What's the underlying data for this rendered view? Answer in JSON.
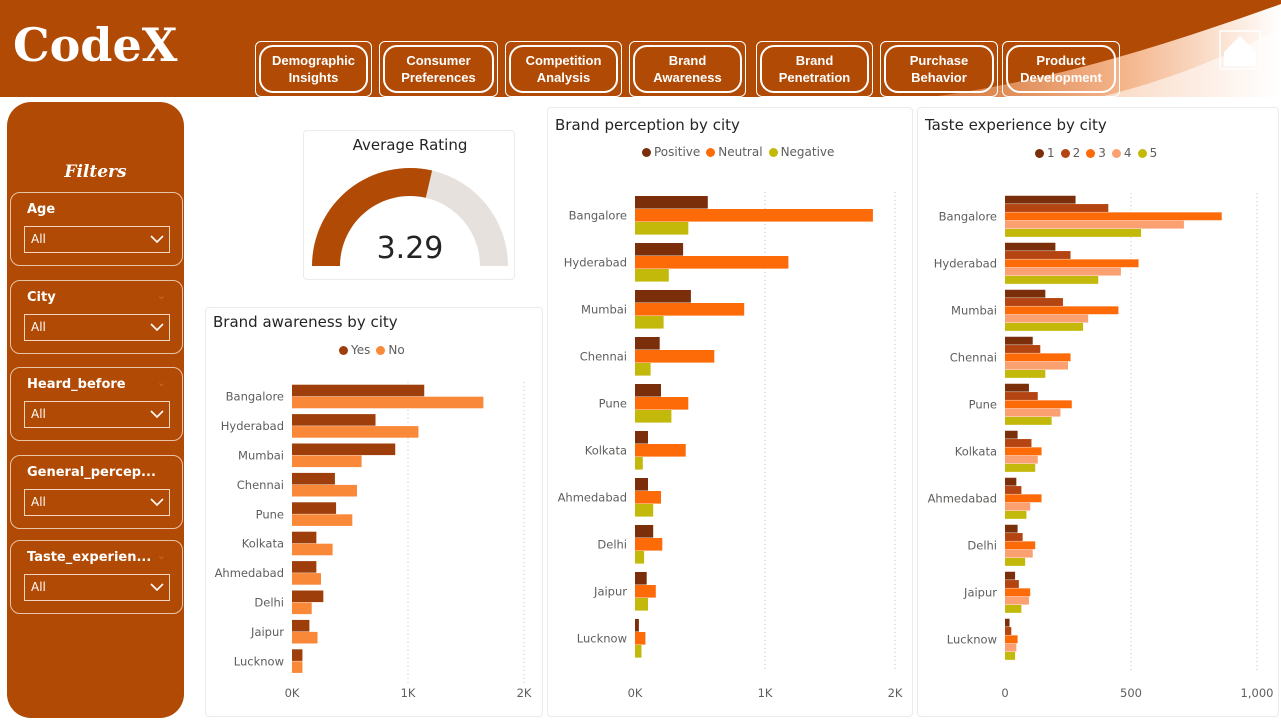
{
  "app": {
    "logo": "CodeX"
  },
  "nav": [
    {
      "line1": "Demographic",
      "line2": "Insights"
    },
    {
      "line1": "Consumer",
      "line2": "Preferences"
    },
    {
      "line1": "Competition",
      "line2": "Analysis"
    },
    {
      "line1": "Brand",
      "line2": "Awareness"
    },
    {
      "line1": "Brand",
      "line2": "Penetration"
    },
    {
      "line1": "Purchase",
      "line2": "Behavior"
    },
    {
      "line1": "Product",
      "line2": "Development"
    }
  ],
  "home_icon": "home-icon",
  "filters": {
    "title": "Filters",
    "items": [
      {
        "label": "Age",
        "value": "All"
      },
      {
        "label": "City",
        "value": "All"
      },
      {
        "label": "Heard_before",
        "value": "All"
      },
      {
        "label": "General_percep...",
        "value": "All"
      },
      {
        "label": "Taste_experien...",
        "value": "All"
      }
    ]
  },
  "gauge": {
    "title": "Average Rating",
    "value": "3.29",
    "numeric": 3.29,
    "min": 1,
    "max": 5
  },
  "colors": {
    "brand": "#b04a04",
    "yes": "#9e3f0b",
    "no": "#f98938",
    "positive": "#7a2f0a",
    "neutral": "#fd6a08",
    "negative": "#c2b90a",
    "t1": "#7a2f0a",
    "t2": "#b44512",
    "t3": "#fd6a08",
    "t4": "#fba071",
    "t5": "#c2b90a",
    "gauge_empty": "#e6e1dd"
  },
  "chart_data": [
    {
      "type": "bar",
      "title": "Brand awareness by city",
      "categories": [
        "Bangalore",
        "Hyderabad",
        "Mumbai",
        "Chennai",
        "Pune",
        "Kolkata",
        "Ahmedabad",
        "Delhi",
        "Jaipur",
        "Lucknow"
      ],
      "series": [
        {
          "name": "Yes",
          "values": [
            1140,
            720,
            890,
            370,
            380,
            210,
            210,
            270,
            150,
            90
          ]
        },
        {
          "name": "No",
          "values": [
            1650,
            1090,
            600,
            560,
            520,
            350,
            250,
            170,
            220,
            90
          ]
        }
      ],
      "xlim": [
        0,
        2000
      ],
      "ticks": [
        0,
        1000,
        2000
      ],
      "tick_labels": [
        "0K",
        "1K",
        "2K"
      ],
      "legend": "top-center"
    },
    {
      "type": "bar",
      "title": "Brand perception by city",
      "categories": [
        "Bangalore",
        "Hyderabad",
        "Mumbai",
        "Chennai",
        "Pune",
        "Kolkata",
        "Ahmedabad",
        "Delhi",
        "Jaipur",
        "Lucknow"
      ],
      "series": [
        {
          "name": "Positive",
          "values": [
            560,
            370,
            430,
            190,
            200,
            100,
            100,
            140,
            90,
            30
          ]
        },
        {
          "name": "Neutral",
          "values": [
            1830,
            1180,
            840,
            610,
            410,
            390,
            200,
            210,
            160,
            80
          ]
        },
        {
          "name": "Negative",
          "values": [
            410,
            260,
            220,
            120,
            280,
            60,
            140,
            70,
            100,
            50
          ]
        }
      ],
      "xlim": [
        0,
        2000
      ],
      "ticks": [
        0,
        1000,
        2000
      ],
      "tick_labels": [
        "0K",
        "1K",
        "2K"
      ],
      "legend": "top-center"
    },
    {
      "type": "bar",
      "title": "Taste experience by city",
      "categories": [
        "Bangalore",
        "Hyderabad",
        "Mumbai",
        "Chennai",
        "Pune",
        "Kolkata",
        "Ahmedabad",
        "Delhi",
        "Jaipur",
        "Lucknow"
      ],
      "series": [
        {
          "name": "1",
          "values": [
            280,
            200,
            160,
            110,
            95,
            50,
            45,
            50,
            40,
            18
          ]
        },
        {
          "name": "2",
          "values": [
            410,
            260,
            230,
            140,
            130,
            105,
            65,
            70,
            55,
            25
          ]
        },
        {
          "name": "3",
          "values": [
            860,
            530,
            450,
            260,
            265,
            145,
            145,
            120,
            100,
            50
          ]
        },
        {
          "name": "4",
          "values": [
            710,
            460,
            330,
            250,
            220,
            130,
            100,
            110,
            95,
            45
          ]
        },
        {
          "name": "5",
          "values": [
            540,
            370,
            310,
            160,
            185,
            120,
            85,
            80,
            65,
            40
          ]
        }
      ],
      "xlim": [
        0,
        1000
      ],
      "ticks": [
        0,
        500,
        1000
      ],
      "tick_labels": [
        "0",
        "500",
        "1,000"
      ],
      "legend": "top-center"
    }
  ]
}
